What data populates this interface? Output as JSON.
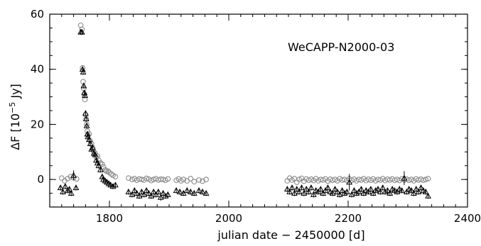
{
  "chart_data": {
    "type": "scatter",
    "title": "",
    "annotation": "WeCAPP-N2000-03",
    "xlabel": "julian date − 2450000 [d]",
    "ylabel": {
      "main": "ΔF [10",
      "sup": "−5",
      "unit": " Jy]"
    },
    "xlim": [
      1700,
      2400
    ],
    "ylim": [
      -10,
      60
    ],
    "x_ticks": [
      1800,
      2000,
      2200,
      2400
    ],
    "y_ticks": [
      0,
      20,
      40,
      60
    ],
    "x_minor_step": 20,
    "y_minor_step": 5,
    "grid": false,
    "series": [
      {
        "marker": "open-circle",
        "color": "#8c8c8c",
        "points": [
          [
            1720,
            0.5
          ],
          [
            1725,
            -0.5
          ],
          [
            1730,
            0.3
          ],
          [
            1735,
            1.0
          ],
          [
            1740,
            0.6
          ],
          [
            1745,
            0.2
          ],
          [
            1752,
            56.0
          ],
          [
            1754,
            54.5
          ],
          [
            1755,
            40.5
          ],
          [
            1756,
            35.5
          ],
          [
            1757,
            33.0
          ],
          [
            1758,
            31.0
          ],
          [
            1759,
            29.0
          ],
          [
            1760,
            23.5
          ],
          [
            1761,
            22.0
          ],
          [
            1762,
            20.0
          ],
          [
            1763,
            17.5
          ],
          [
            1764,
            16.0
          ],
          [
            1766,
            16.5
          ],
          [
            1768,
            14.0
          ],
          [
            1770,
            13.0
          ],
          [
            1772,
            11.5
          ],
          [
            1774,
            10.0
          ],
          [
            1776,
            9.5
          ],
          [
            1778,
            8.0
          ],
          [
            1780,
            8.5
          ],
          [
            1782,
            7.0
          ],
          [
            1785,
            6.0
          ],
          [
            1788,
            5.5
          ],
          [
            1790,
            4.5
          ],
          [
            1793,
            3.5
          ],
          [
            1795,
            3.0
          ],
          [
            1798,
            3.0
          ],
          [
            1800,
            2.5
          ],
          [
            1803,
            2.0
          ],
          [
            1806,
            1.5
          ],
          [
            1810,
            1.0
          ],
          [
            1832,
            0.5
          ],
          [
            1838,
            0.0
          ],
          [
            1842,
            0.3
          ],
          [
            1846,
            -0.3
          ],
          [
            1850,
            0.2
          ],
          [
            1854,
            0.0
          ],
          [
            1858,
            -0.2
          ],
          [
            1862,
            0.4
          ],
          [
            1866,
            0.1
          ],
          [
            1870,
            -0.4
          ],
          [
            1874,
            0.0
          ],
          [
            1878,
            0.3
          ],
          [
            1882,
            -0.2
          ],
          [
            1886,
            0.1
          ],
          [
            1890,
            0.0
          ],
          [
            1894,
            -0.3
          ],
          [
            1898,
            0.2
          ],
          [
            1912,
            -0.3
          ],
          [
            1916,
            0.2
          ],
          [
            1920,
            -0.5
          ],
          [
            1924,
            0.0
          ],
          [
            1930,
            -0.5
          ],
          [
            1936,
            0.3
          ],
          [
            1942,
            -0.8
          ],
          [
            1950,
            -0.2
          ],
          [
            1956,
            -0.6
          ],
          [
            1962,
            0.0
          ],
          [
            2098,
            -0.5
          ],
          [
            2102,
            0.5
          ],
          [
            2106,
            -0.2
          ],
          [
            2110,
            0.3
          ],
          [
            2114,
            -1.0
          ],
          [
            2118,
            0.0
          ],
          [
            2122,
            0.4
          ],
          [
            2126,
            -0.6
          ],
          [
            2130,
            0.2
          ],
          [
            2134,
            -0.3
          ],
          [
            2138,
            0.1
          ],
          [
            2142,
            -0.4
          ],
          [
            2146,
            0.3
          ],
          [
            2150,
            -0.5
          ],
          [
            2154,
            0.0
          ],
          [
            2158,
            -0.2
          ],
          [
            2162,
            0.2
          ],
          [
            2166,
            -0.6
          ],
          [
            2170,
            0.1
          ],
          [
            2174,
            -0.3
          ],
          [
            2178,
            0.0
          ],
          [
            2182,
            -0.5
          ],
          [
            2186,
            0.3
          ],
          [
            2190,
            -0.2
          ],
          [
            2194,
            0.0
          ],
          [
            2198,
            -0.4
          ],
          [
            2202,
            0.2
          ],
          [
            2206,
            -0.3
          ],
          [
            2210,
            0.1
          ],
          [
            2214,
            -0.5
          ],
          [
            2218,
            0.0
          ],
          [
            2222,
            -0.2
          ],
          [
            2226,
            0.3
          ],
          [
            2230,
            -0.4
          ],
          [
            2234,
            0.1
          ],
          [
            2238,
            -0.3
          ],
          [
            2242,
            0.2
          ],
          [
            2246,
            -0.5
          ],
          [
            2250,
            0.0
          ],
          [
            2254,
            -0.2
          ],
          [
            2258,
            0.3
          ],
          [
            2262,
            -0.4
          ],
          [
            2266,
            0.1
          ],
          [
            2270,
            -0.2
          ],
          [
            2274,
            0.2
          ],
          [
            2278,
            -0.3
          ],
          [
            2282,
            0.0
          ],
          [
            2286,
            -0.4
          ],
          [
            2290,
            0.2
          ],
          [
            2294,
            -0.2
          ],
          [
            2298,
            0.1
          ],
          [
            2302,
            -0.3
          ],
          [
            2306,
            0.0
          ],
          [
            2310,
            -0.5
          ],
          [
            2314,
            0.2
          ],
          [
            2318,
            -0.2
          ],
          [
            2322,
            0.1
          ],
          [
            2326,
            -0.3
          ],
          [
            2330,
            0.0
          ],
          [
            2334,
            0.3
          ]
        ]
      },
      {
        "marker": "open-triangle",
        "color": "#000000",
        "error_bars": true,
        "points": [
          [
            1718,
            -3.0,
            1.0
          ],
          [
            1722,
            -4.5,
            1.0
          ],
          [
            1726,
            -2.5,
            1.0
          ],
          [
            1730,
            -4.0,
            1.0
          ],
          [
            1733,
            -3.5,
            1.0
          ],
          [
            1736,
            -5.0,
            1.0
          ],
          [
            1740,
            1.5,
            1.8
          ],
          [
            1744,
            -3.0,
            1.0
          ],
          [
            1752,
            53.5,
            1.0
          ],
          [
            1754,
            53.5,
            1.0
          ],
          [
            1755,
            40.0,
            1.0
          ],
          [
            1756,
            39.0,
            1.0
          ],
          [
            1757,
            34.0,
            1.0
          ],
          [
            1758,
            31.5,
            1.0
          ],
          [
            1759,
            30.5,
            1.0
          ],
          [
            1760,
            24.0,
            1.0
          ],
          [
            1761,
            22.0,
            1.0
          ],
          [
            1762,
            19.5,
            1.0
          ],
          [
            1763,
            16.5,
            1.0
          ],
          [
            1764,
            15.5,
            1.0
          ],
          [
            1766,
            14.5,
            1.0
          ],
          [
            1768,
            13.0,
            1.0
          ],
          [
            1770,
            11.0,
            1.0
          ],
          [
            1772,
            11.5,
            1.0
          ],
          [
            1774,
            9.5,
            1.0
          ],
          [
            1776,
            9.0,
            1.0
          ],
          [
            1778,
            7.0,
            1.0
          ],
          [
            1780,
            6.0,
            1.0
          ],
          [
            1782,
            5.0,
            1.0
          ],
          [
            1785,
            3.5,
            1.0
          ],
          [
            1788,
            1.0,
            1.0
          ],
          [
            1790,
            0.0,
            1.0
          ],
          [
            1793,
            -0.5,
            1.0
          ],
          [
            1796,
            -1.0,
            1.0
          ],
          [
            1799,
            -1.5,
            1.0
          ],
          [
            1802,
            -2.0,
            1.0
          ],
          [
            1806,
            -2.5,
            1.0
          ],
          [
            1810,
            -2.0,
            1.0
          ],
          [
            1832,
            -4.5,
            1.0
          ],
          [
            1838,
            -5.5,
            1.0
          ],
          [
            1842,
            -4.0,
            1.0
          ],
          [
            1846,
            -5.0,
            1.0
          ],
          [
            1850,
            -6.0,
            1.0
          ],
          [
            1854,
            -4.5,
            1.0
          ],
          [
            1858,
            -5.5,
            1.0
          ],
          [
            1862,
            -4.0,
            1.0
          ],
          [
            1866,
            -5.0,
            1.0
          ],
          [
            1870,
            -6.0,
            1.0
          ],
          [
            1874,
            -4.5,
            1.0
          ],
          [
            1878,
            -5.5,
            1.0
          ],
          [
            1882,
            -4.5,
            1.0
          ],
          [
            1886,
            -6.5,
            1.2
          ],
          [
            1890,
            -5.0,
            1.0
          ],
          [
            1894,
            -6.0,
            1.0
          ],
          [
            1898,
            -5.5,
            1.0
          ],
          [
            1912,
            -4.0,
            1.0
          ],
          [
            1918,
            -4.5,
            1.0
          ],
          [
            1924,
            -5.0,
            1.0
          ],
          [
            1930,
            -4.0,
            1.0
          ],
          [
            1936,
            -4.5,
            1.0
          ],
          [
            1942,
            -5.0,
            1.0
          ],
          [
            1950,
            -4.0,
            1.0
          ],
          [
            1956,
            -4.5,
            1.0
          ],
          [
            1962,
            -5.0,
            1.0
          ],
          [
            2098,
            -3.5,
            1.0
          ],
          [
            2102,
            -4.5,
            1.0
          ],
          [
            2106,
            -3.0,
            1.0
          ],
          [
            2110,
            -5.0,
            1.0
          ],
          [
            2114,
            -3.5,
            1.0
          ],
          [
            2118,
            -4.5,
            1.0
          ],
          [
            2122,
            -3.0,
            1.0
          ],
          [
            2126,
            -5.0,
            1.0
          ],
          [
            2130,
            -3.5,
            1.0
          ],
          [
            2134,
            -4.5,
            1.0
          ],
          [
            2138,
            -3.0,
            1.0
          ],
          [
            2142,
            -5.5,
            1.0
          ],
          [
            2146,
            -4.0,
            1.0
          ],
          [
            2150,
            -4.5,
            1.0
          ],
          [
            2154,
            -3.5,
            1.0
          ],
          [
            2158,
            -5.0,
            1.0
          ],
          [
            2162,
            -4.0,
            1.0
          ],
          [
            2166,
            -3.0,
            1.0
          ],
          [
            2170,
            -4.5,
            1.0
          ],
          [
            2174,
            -5.0,
            1.0
          ],
          [
            2178,
            -3.5,
            1.0
          ],
          [
            2182,
            -4.5,
            1.0
          ],
          [
            2186,
            -5.5,
            1.0
          ],
          [
            2190,
            -4.0,
            1.0
          ],
          [
            2194,
            -5.0,
            1.0
          ],
          [
            2198,
            -4.5,
            1.0
          ],
          [
            2202,
            -1.0,
            3.0
          ],
          [
            2206,
            -5.5,
            1.0
          ],
          [
            2210,
            -4.0,
            1.0
          ],
          [
            2214,
            -5.0,
            1.0
          ],
          [
            2218,
            -4.5,
            1.0
          ],
          [
            2222,
            -3.5,
            1.0
          ],
          [
            2226,
            -5.0,
            1.0
          ],
          [
            2230,
            -4.0,
            1.0
          ],
          [
            2234,
            -4.5,
            1.0
          ],
          [
            2238,
            -3.5,
            1.0
          ],
          [
            2242,
            -5.0,
            1.0
          ],
          [
            2246,
            -4.0,
            1.0
          ],
          [
            2250,
            -3.5,
            1.0
          ],
          [
            2254,
            -4.5,
            1.0
          ],
          [
            2258,
            -3.0,
            1.0
          ],
          [
            2262,
            -4.5,
            1.0
          ],
          [
            2266,
            -4.0,
            1.0
          ],
          [
            2270,
            -5.0,
            1.0
          ],
          [
            2274,
            -3.5,
            1.0
          ],
          [
            2278,
            -4.0,
            1.0
          ],
          [
            2282,
            -4.5,
            1.0
          ],
          [
            2286,
            -3.5,
            1.0
          ],
          [
            2290,
            -4.0,
            1.0
          ],
          [
            2294,
            0.5,
            2.5
          ],
          [
            2298,
            -4.5,
            1.0
          ],
          [
            2302,
            -3.5,
            1.0
          ],
          [
            2306,
            -4.0,
            1.0
          ],
          [
            2310,
            -5.0,
            1.0
          ],
          [
            2314,
            -3.5,
            1.0
          ],
          [
            2318,
            -4.5,
            1.0
          ],
          [
            2322,
            -3.0,
            1.0
          ],
          [
            2326,
            -4.0,
            1.0
          ],
          [
            2330,
            -4.5,
            1.0
          ],
          [
            2334,
            -6.0,
            1.0
          ]
        ]
      }
    ]
  }
}
